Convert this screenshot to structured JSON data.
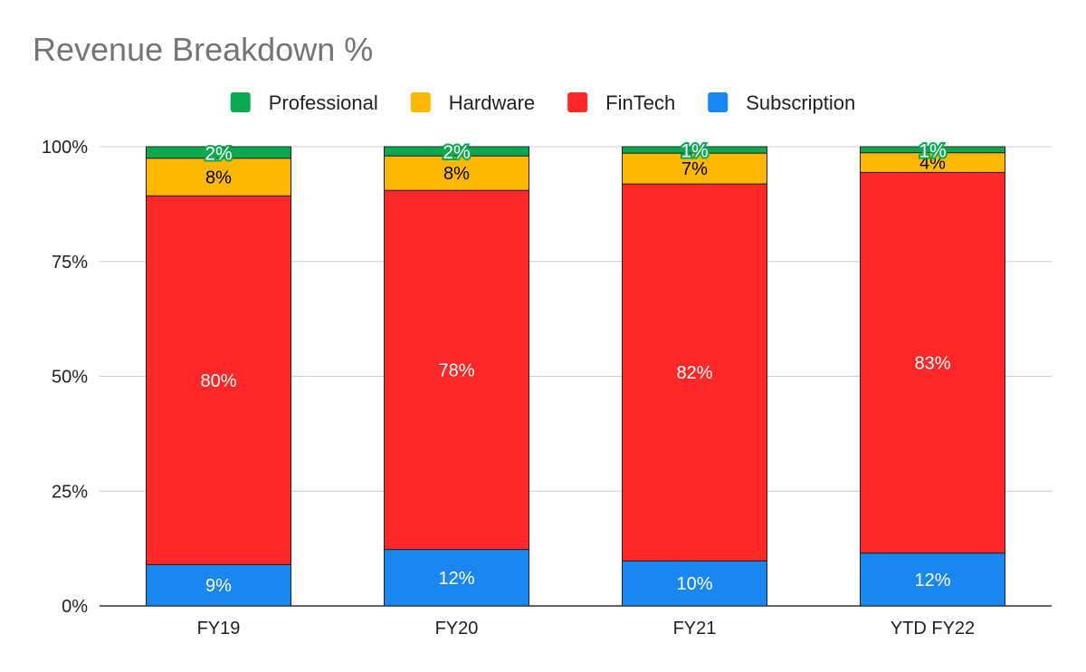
{
  "chart_data": {
    "type": "bar",
    "stacked": true,
    "title": "Revenue Breakdown %",
    "xlabel": "",
    "ylabel": "",
    "ylim": [
      0,
      100
    ],
    "yticks": [
      "0%",
      "25%",
      "50%",
      "75%",
      "100%"
    ],
    "grid": true,
    "legend_position": "top",
    "categories": [
      "FY19",
      "FY20",
      "FY21",
      "YTD FY22"
    ],
    "series": [
      {
        "name": "Subscription",
        "color": "#1a86f0",
        "values": [
          9,
          12,
          10,
          12
        ],
        "display_values": [
          9,
          12.3,
          9.8,
          11.5
        ],
        "label_color": "#ffffff"
      },
      {
        "name": "FinTech",
        "color": "#ff2828",
        "values": [
          80,
          78,
          82,
          83
        ],
        "display_values": [
          80.3,
          78.2,
          82.1,
          82.9
        ],
        "label_color": "#ffffff"
      },
      {
        "name": "Hardware",
        "color": "#ffb800",
        "values": [
          8,
          8,
          7,
          4
        ],
        "display_values": [
          8.2,
          7.5,
          6.7,
          4.3
        ],
        "label_color": "#000000"
      },
      {
        "name": "Professional",
        "color": "#0aa84f",
        "values": [
          2,
          2,
          1,
          1
        ],
        "display_values": [
          2.5,
          2,
          1.4,
          1.3
        ],
        "label_color": "#ffffff"
      }
    ],
    "legend_order": [
      "Professional",
      "Hardware",
      "FinTech",
      "Subscription"
    ]
  }
}
